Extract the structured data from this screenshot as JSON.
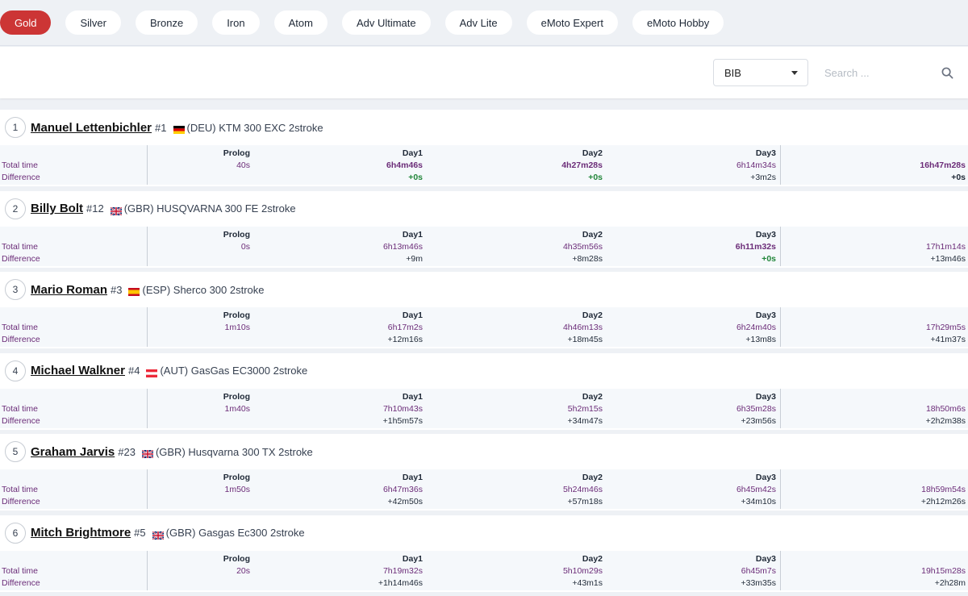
{
  "classes": [
    "Gold",
    "Silver",
    "Bronze",
    "Iron",
    "Atom",
    "Adv Ultimate",
    "Adv Lite",
    "eMoto Expert",
    "eMoto Hobby"
  ],
  "active_class": "Gold",
  "filter": {
    "selected": "BIB",
    "search_placeholder": "Search ..."
  },
  "labels": {
    "total_time": "Total time",
    "difference": "Difference",
    "prolog": "Prolog",
    "day1": "Day1",
    "day2": "Day2",
    "day3": "Day3"
  },
  "riders": [
    {
      "pos": "1",
      "name": "Manuel Lettenbichler",
      "num": "#1",
      "flag": "DEU",
      "info": "(DEU) KTM 300 EXC 2stroke",
      "prolog": "40s",
      "day1": "6h4m46s",
      "day2": "4h27m28s",
      "day3": "6h14m34s",
      "total": "16h47m28s",
      "d1": "+0s",
      "d2": "+0s",
      "d3": "+3m2s",
      "dt": "+0s"
    },
    {
      "pos": "2",
      "name": "Billy Bolt",
      "num": "#12",
      "flag": "GBR",
      "info": "(GBR) HUSQVARNA 300 FE 2stroke",
      "prolog": "0s",
      "day1": "6h13m46s",
      "day2": "4h35m56s",
      "day3": "6h11m32s",
      "total": "17h1m14s",
      "d1": "+9m",
      "d2": "+8m28s",
      "d3": "+0s",
      "dt": "+13m46s"
    },
    {
      "pos": "3",
      "name": "Mario Roman",
      "num": "#3",
      "flag": "ESP",
      "info": "(ESP) Sherco 300 2stroke",
      "prolog": "1m10s",
      "day1": "6h17m2s",
      "day2": "4h46m13s",
      "day3": "6h24m40s",
      "total": "17h29m5s",
      "d1": "+12m16s",
      "d2": "+18m45s",
      "d3": "+13m8s",
      "dt": "+41m37s"
    },
    {
      "pos": "4",
      "name": "Michael Walkner",
      "num": "#4",
      "flag": "AUT",
      "info": "(AUT) GasGas EC3000 2stroke",
      "prolog": "1m40s",
      "day1": "7h10m43s",
      "day2": "5h2m15s",
      "day3": "6h35m28s",
      "total": "18h50m6s",
      "d1": "+1h5m57s",
      "d2": "+34m47s",
      "d3": "+23m56s",
      "dt": "+2h2m38s"
    },
    {
      "pos": "5",
      "name": "Graham Jarvis",
      "num": "#23",
      "flag": "GBR",
      "info": "(GBR) Husqvarna 300 TX 2stroke",
      "prolog": "1m50s",
      "day1": "6h47m36s",
      "day2": "5h24m46s",
      "day3": "6h45m42s",
      "total": "18h59m54s",
      "d1": "+42m50s",
      "d2": "+57m18s",
      "d3": "+34m10s",
      "dt": "+2h12m26s"
    },
    {
      "pos": "6",
      "name": "Mitch Brightmore",
      "num": "#5",
      "flag": "GBR",
      "info": "(GBR) Gasgas Ec300 2stroke",
      "prolog": "20s",
      "day1": "7h19m32s",
      "day2": "5h10m29s",
      "day3": "6h45m7s",
      "total": "19h15m28s",
      "d1": "+1h14m46s",
      "d2": "+43m1s",
      "d3": "+33m35s",
      "dt": "+2h28m"
    }
  ],
  "colors": {
    "accent": "#cc3535",
    "time": "#6b2c78",
    "best_diff": "#22863a"
  }
}
